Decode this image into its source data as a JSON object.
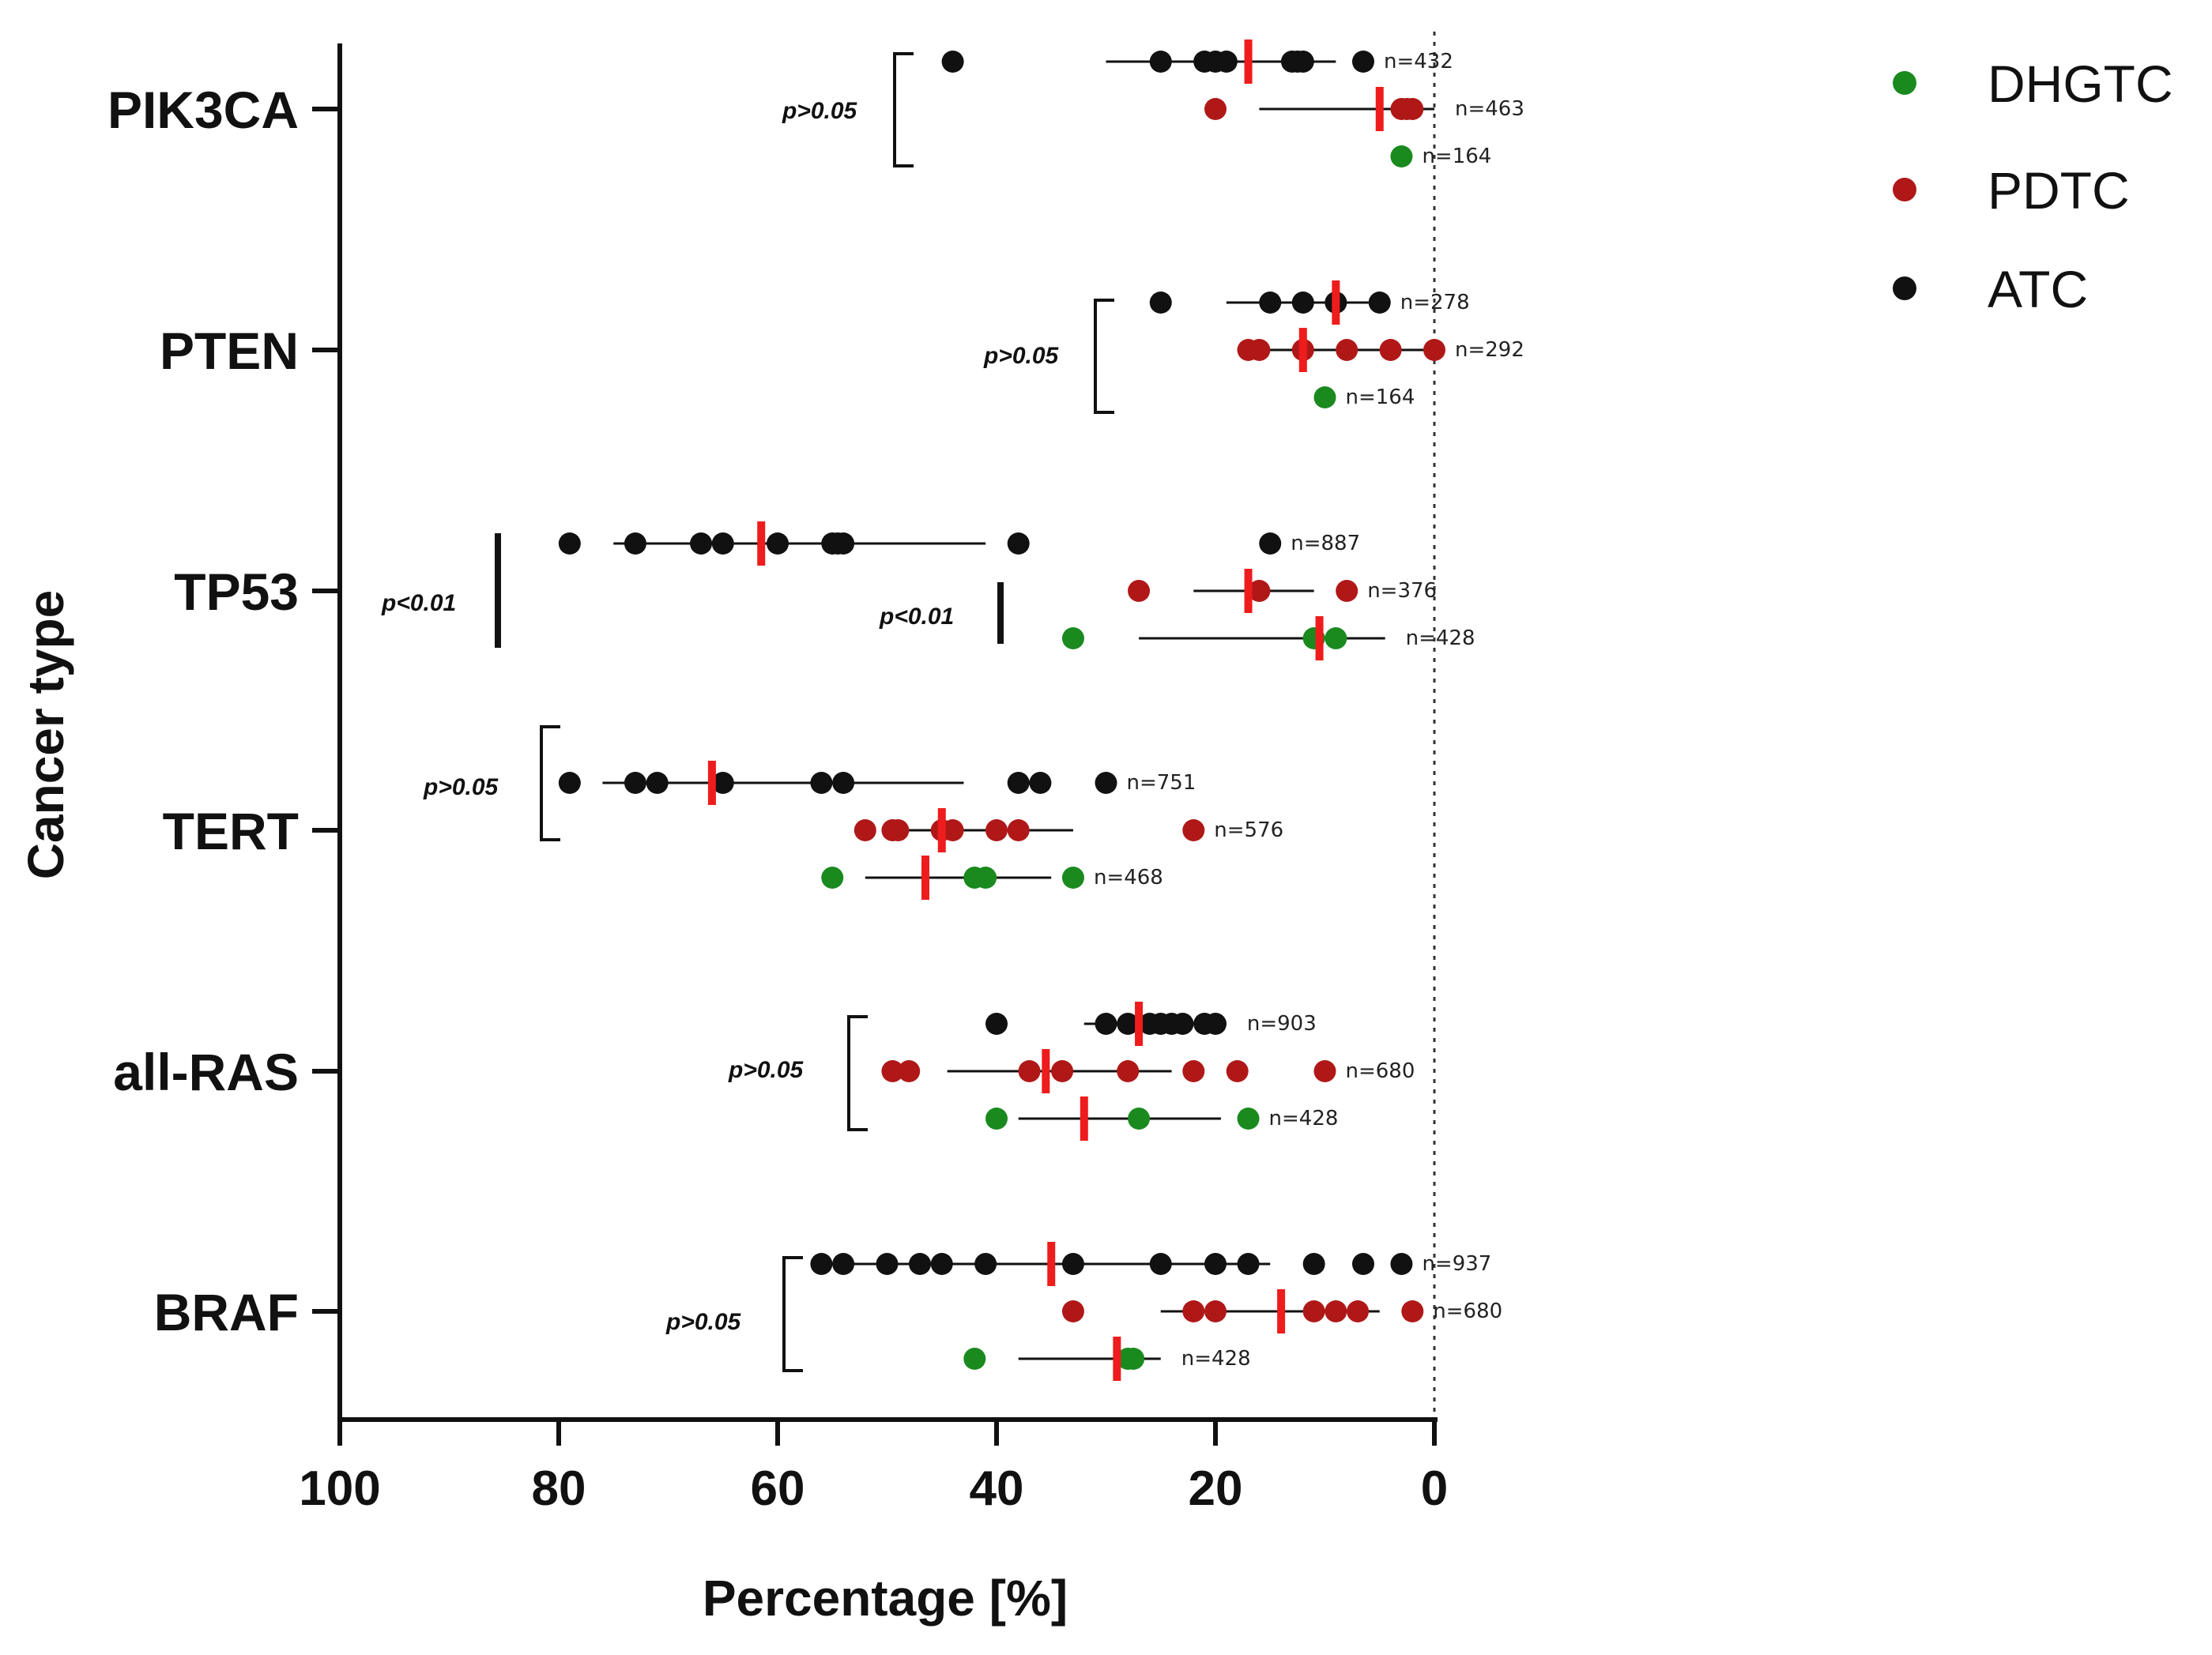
{
  "chart_data": {
    "type": "scatter",
    "title": "",
    "xlabel": "Percentage [%]",
    "ylabel": "Cancer type",
    "xlim": [
      100,
      0
    ],
    "x_reversed": true,
    "xticks": [
      "100",
      "80",
      "60",
      "40",
      "20",
      "0"
    ],
    "categories": [
      "PIK3CA",
      "PTEN",
      "TP53",
      "TERT",
      "all-RAS",
      "BRAF"
    ],
    "legend": [
      {
        "name": "DHGTC",
        "color": "#1a8a1f"
      },
      {
        "name": "PDTC",
        "color": "#b01818"
      },
      {
        "name": "ATC",
        "color": "#111111"
      }
    ],
    "groups": [
      {
        "category": "PIK3CA",
        "p_value": "p>0.05",
        "series": [
          {
            "name": "ATC",
            "points": [
              44,
              25,
              21,
              20,
              19,
              13,
              12.5,
              12,
              6.5
            ],
            "mean": 17,
            "range": [
              30,
              9
            ],
            "n": "n=432"
          },
          {
            "name": "PDTC",
            "points": [
              20,
              3,
              2.5,
              2
            ],
            "mean": 5,
            "range": [
              16,
              0
            ],
            "n": "n=463"
          },
          {
            "name": "DHGTC",
            "points": [
              3
            ],
            "mean": null,
            "range": null,
            "n": "n=164"
          }
        ]
      },
      {
        "category": "PTEN",
        "p_value": "p>0.05",
        "series": [
          {
            "name": "ATC",
            "points": [
              25,
              15,
              12,
              9,
              5
            ],
            "mean": 9,
            "range": [
              19,
              6
            ],
            "n": "n=278"
          },
          {
            "name": "PDTC",
            "points": [
              17,
              16,
              12,
              8,
              4,
              0
            ],
            "mean": 12,
            "range": [
              18,
              0
            ],
            "n": "n=292"
          },
          {
            "name": "DHGTC",
            "points": [
              10
            ],
            "mean": null,
            "range": null,
            "n": "n=164"
          }
        ]
      },
      {
        "category": "TP53",
        "p_value": "p<0.01",
        "p_value_2": "p<0.01",
        "series": [
          {
            "name": "ATC",
            "points": [
              79,
              73,
              67,
              65,
              60,
              55,
              54.5,
              54,
              38,
              15
            ],
            "mean": 61.5,
            "range": [
              75,
              41
            ],
            "n": "n=887"
          },
          {
            "name": "PDTC",
            "points": [
              27,
              16,
              8
            ],
            "mean": 17,
            "range": [
              22,
              11
            ],
            "n": "n=376"
          },
          {
            "name": "DHGTC",
            "points": [
              33,
              11,
              9
            ],
            "mean": 10.5,
            "range": [
              27,
              4.5
            ],
            "n": "n=428"
          }
        ]
      },
      {
        "category": "TERT",
        "p_value": "p>0.05",
        "series": [
          {
            "name": "ATC",
            "points": [
              79,
              73,
              71,
              65,
              56,
              54,
              38,
              36,
              30
            ],
            "mean": 66,
            "range": [
              76,
              43
            ],
            "n": "n=751"
          },
          {
            "name": "PDTC",
            "points": [
              52,
              49.5,
              49,
              45,
              44,
              40,
              38,
              22
            ],
            "mean": 45,
            "range": [
              50,
              33
            ],
            "n": "n=576"
          },
          {
            "name": "DHGTC",
            "points": [
              55,
              42,
              41,
              33
            ],
            "mean": 46.5,
            "range": [
              52,
              35
            ],
            "n": "n=468"
          }
        ]
      },
      {
        "category": "all-RAS",
        "p_value": "p>0.05",
        "series": [
          {
            "name": "ATC",
            "points": [
              40,
              30,
              28,
              26,
              25,
              24,
              23,
              21,
              20
            ],
            "mean": 27,
            "range": [
              32,
              19
            ],
            "n": "n=903"
          },
          {
            "name": "PDTC",
            "points": [
              49.5,
              48,
              37,
              34,
              28,
              22,
              18,
              10
            ],
            "mean": 35.5,
            "range": [
              44.5,
              24
            ],
            "n": "n=680"
          },
          {
            "name": "DHGTC",
            "points": [
              40,
              27,
              17
            ],
            "mean": 32,
            "range": [
              38,
              19.5
            ],
            "n": "n=428"
          }
        ]
      },
      {
        "category": "BRAF",
        "p_value": "p>0.05",
        "series": [
          {
            "name": "ATC",
            "points": [
              56,
              54,
              50,
              47,
              45,
              41,
              33,
              25,
              20,
              17,
              11,
              6.5,
              3
            ],
            "mean": 35,
            "range": [
              56,
              15
            ],
            "n": "n=937"
          },
          {
            "name": "PDTC",
            "points": [
              33,
              22,
              20,
              11,
              9,
              7,
              2
            ],
            "mean": 14,
            "range": [
              25,
              5
            ],
            "n": "n=680"
          },
          {
            "name": "DHGTC",
            "points": [
              42,
              28,
              27.5
            ],
            "mean": 29,
            "range": [
              38,
              25
            ],
            "n": "n=428"
          }
        ]
      }
    ]
  }
}
